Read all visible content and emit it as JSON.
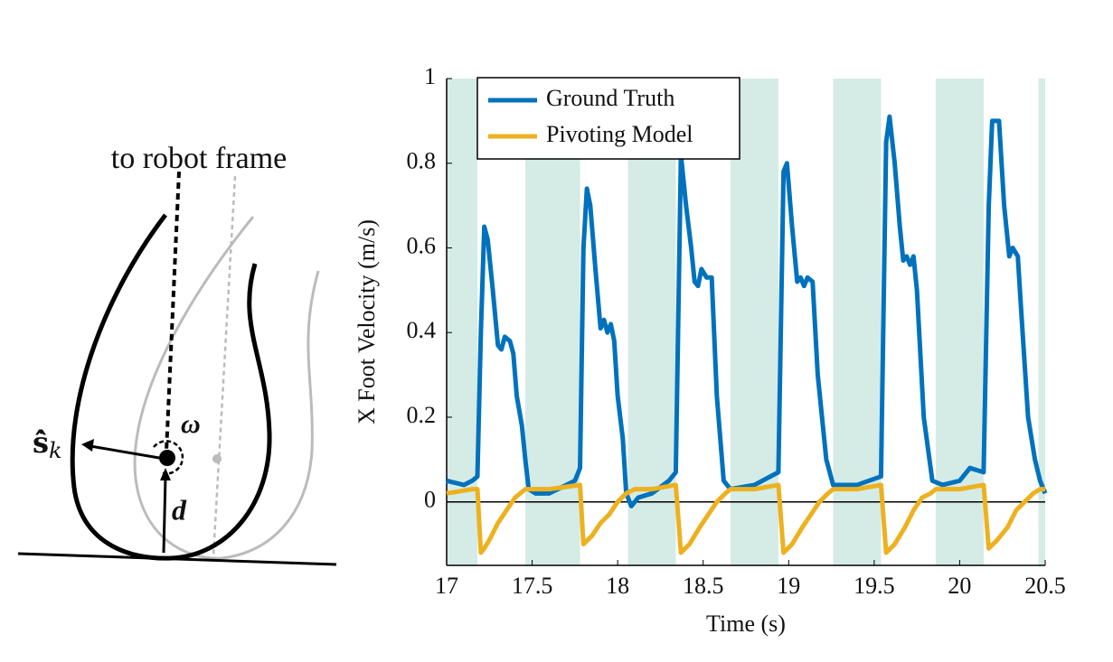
{
  "diagram": {
    "title": "to robot frame",
    "s_label": "ŝ̇",
    "s_subscript": "k",
    "omega_label": "ω",
    "d_label": "d"
  },
  "chart_data": {
    "type": "line",
    "xlabel": "Time (s)",
    "ylabel": "X Foot Velocity (m/s)",
    "xlim": [
      17,
      20.5
    ],
    "ylim": [
      -0.15,
      1
    ],
    "xticks": [
      17,
      17.5,
      18,
      18.5,
      19,
      19.5,
      20,
      20.5
    ],
    "yticks": [
      0,
      0.2,
      0.4,
      0.6,
      0.8,
      1
    ],
    "legend": "top-left",
    "zero_line": true,
    "bands": {
      "color": "#d5ebe6",
      "ranges": [
        [
          17,
          17.18
        ],
        [
          17.46,
          17.78
        ],
        [
          18.06,
          18.34
        ],
        [
          18.66,
          18.94
        ],
        [
          19.26,
          19.54
        ],
        [
          19.86,
          20.14
        ],
        [
          20.46,
          20.5
        ]
      ]
    },
    "series": [
      {
        "name": "Ground Truth",
        "color": "#0072bd",
        "x": [
          17.0,
          17.1,
          17.15,
          17.18,
          17.2,
          17.22,
          17.24,
          17.27,
          17.3,
          17.32,
          17.34,
          17.37,
          17.39,
          17.41,
          17.44,
          17.46,
          17.48,
          17.52,
          17.6,
          17.7,
          17.75,
          17.78,
          17.8,
          17.82,
          17.84,
          17.87,
          17.9,
          17.92,
          17.94,
          17.96,
          17.98,
          18.0,
          18.03,
          18.05,
          18.08,
          18.12,
          18.2,
          18.3,
          18.34,
          18.37,
          18.4,
          18.43,
          18.45,
          18.47,
          18.49,
          18.52,
          18.55,
          18.58,
          18.62,
          18.66,
          18.8,
          18.94,
          18.97,
          18.99,
          19.02,
          19.05,
          19.07,
          19.09,
          19.11,
          19.14,
          19.17,
          19.22,
          19.26,
          19.4,
          19.54,
          19.57,
          19.59,
          19.62,
          19.65,
          19.67,
          19.69,
          19.71,
          19.73,
          19.75,
          19.79,
          19.84,
          19.9,
          20.0,
          20.06,
          20.14,
          20.17,
          20.19,
          20.23,
          20.26,
          20.29,
          20.31,
          20.34,
          20.36,
          20.4,
          20.44,
          20.47,
          20.5
        ],
        "values": [
          0.05,
          0.04,
          0.05,
          0.06,
          0.4,
          0.65,
          0.62,
          0.5,
          0.37,
          0.36,
          0.39,
          0.38,
          0.35,
          0.25,
          0.18,
          0.1,
          0.03,
          0.02,
          0.02,
          0.04,
          0.05,
          0.08,
          0.6,
          0.74,
          0.7,
          0.55,
          0.41,
          0.43,
          0.4,
          0.42,
          0.38,
          0.25,
          0.15,
          0.02,
          -0.01,
          0.01,
          0.02,
          0.05,
          0.07,
          0.82,
          0.7,
          0.6,
          0.52,
          0.51,
          0.55,
          0.53,
          0.53,
          0.25,
          0.05,
          0.03,
          0.04,
          0.07,
          0.78,
          0.8,
          0.65,
          0.52,
          0.53,
          0.51,
          0.53,
          0.52,
          0.3,
          0.1,
          0.04,
          0.04,
          0.06,
          0.85,
          0.91,
          0.8,
          0.65,
          0.57,
          0.58,
          0.56,
          0.58,
          0.5,
          0.2,
          0.05,
          0.04,
          0.05,
          0.08,
          0.07,
          0.7,
          0.9,
          0.9,
          0.7,
          0.58,
          0.6,
          0.58,
          0.45,
          0.2,
          0.1,
          0.05,
          0.02
        ]
      },
      {
        "name": "Pivoting Model",
        "color": "#edb120",
        "x": [
          17.0,
          17.15,
          17.18,
          17.2,
          17.22,
          17.25,
          17.3,
          17.35,
          17.4,
          17.43,
          17.46,
          17.6,
          17.78,
          17.8,
          17.85,
          17.9,
          17.95,
          18.0,
          18.05,
          18.1,
          18.2,
          18.34,
          18.37,
          18.42,
          18.48,
          18.53,
          18.58,
          18.63,
          18.66,
          18.8,
          18.94,
          18.97,
          19.02,
          19.08,
          19.13,
          19.18,
          19.23,
          19.26,
          19.4,
          19.54,
          19.57,
          19.62,
          19.68,
          19.73,
          19.78,
          19.83,
          19.86,
          20.0,
          20.14,
          20.17,
          20.22,
          20.28,
          20.33,
          20.38,
          20.43,
          20.47,
          20.5
        ],
        "values": [
          0.02,
          0.03,
          0.03,
          -0.12,
          -0.11,
          -0.09,
          -0.05,
          -0.02,
          0.01,
          0.02,
          0.03,
          0.03,
          0.04,
          -0.1,
          -0.08,
          -0.05,
          -0.03,
          0.0,
          0.02,
          0.03,
          0.03,
          0.04,
          -0.12,
          -0.1,
          -0.06,
          -0.03,
          0.0,
          0.02,
          0.03,
          0.03,
          0.04,
          -0.12,
          -0.1,
          -0.06,
          -0.03,
          0.0,
          0.02,
          0.03,
          0.03,
          0.04,
          -0.12,
          -0.1,
          -0.06,
          -0.02,
          0.01,
          0.02,
          0.03,
          0.03,
          0.04,
          -0.11,
          -0.09,
          -0.06,
          -0.02,
          0.0,
          0.02,
          0.03,
          0.03
        ]
      }
    ]
  }
}
